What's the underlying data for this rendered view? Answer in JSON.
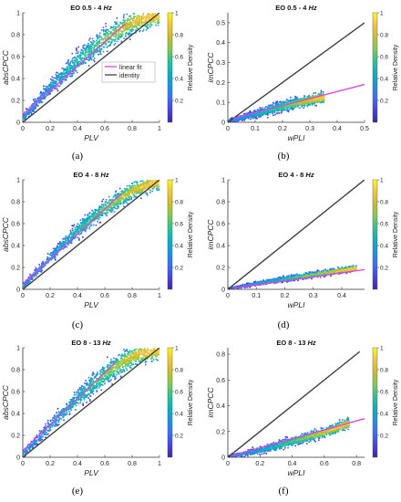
{
  "captions": [
    "(a)",
    "(b)",
    "(c)",
    "(d)",
    "(e)",
    "(f)"
  ],
  "colormap": [
    "#3e26a8",
    "#4743e0",
    "#3c6dfc",
    "#1a94e1",
    "#0cb0c0",
    "#2ac395",
    "#80ca56",
    "#c7bd2e",
    "#f6c43b",
    "#f9fb15"
  ],
  "colors": {
    "identity": "#404040",
    "fit": "#e23fe2",
    "axis": "#333333"
  },
  "chart_data": [
    {
      "type": "scatter",
      "title": "EO 0.5 - 4",
      "title_unit": "Hz",
      "xlabel": "PLV",
      "ylabel": "absCPCC",
      "xlim": [
        0,
        1
      ],
      "ylim": [
        0,
        1
      ],
      "xticks": [
        "0",
        "0.2",
        "0.4",
        "0.6",
        "0.8",
        "1"
      ],
      "yticks": [
        "0",
        "0.2",
        "0.4",
        "0.6",
        "0.8",
        "1"
      ],
      "colorbar": {
        "label": "Relative Density",
        "ticks": [
          "0.2",
          "0.4",
          "0.6",
          "0.8",
          "1"
        ]
      },
      "legend": {
        "position": "right-center",
        "entries": [
          "linear fit",
          "identity"
        ]
      },
      "series": [
        {
          "name": "identity",
          "x": [
            0,
            1
          ],
          "y": [
            0,
            1
          ]
        },
        {
          "name": "linear fit",
          "x": [
            0,
            0.75
          ],
          "y": [
            0.07,
            0.9
          ]
        }
      ],
      "density_band": {
        "center": [
          [
            0,
            0.05
          ],
          [
            0.2,
            0.33
          ],
          [
            0.4,
            0.57
          ],
          [
            0.6,
            0.77
          ],
          [
            0.8,
            0.92
          ],
          [
            1,
            1
          ]
        ],
        "spread": 0.2
      }
    },
    {
      "type": "scatter",
      "title": "EO 0.5 - 4",
      "title_unit": "Hz",
      "xlabel": "wPLI",
      "ylabel": "imCPCC",
      "xlim": [
        0,
        0.5
      ],
      "ylim": [
        0,
        0.55
      ],
      "xticks": [
        "0",
        "0.1",
        "0.2",
        "0.3",
        "0.4",
        "0.5"
      ],
      "yticks": [
        "0",
        "0.1",
        "0.2",
        "0.3",
        "0.4",
        "0.5"
      ],
      "colorbar": {
        "label": "Relative Density",
        "ticks": [
          "0.2",
          "0.4",
          "0.6",
          "0.8",
          "1"
        ]
      },
      "series": [
        {
          "name": "identity",
          "x": [
            0,
            0.5
          ],
          "y": [
            0,
            0.5
          ]
        },
        {
          "name": "linear fit",
          "x": [
            0.02,
            0.5
          ],
          "y": [
            0.02,
            0.19
          ]
        }
      ],
      "density_band": {
        "center": [
          [
            0,
            0.01
          ],
          [
            0.1,
            0.045
          ],
          [
            0.2,
            0.085
          ],
          [
            0.3,
            0.115
          ],
          [
            0.35,
            0.13
          ]
        ],
        "spread": 0.05
      }
    },
    {
      "type": "scatter",
      "title": "EO 4 - 8",
      "title_unit": "Hz",
      "xlabel": "PLV",
      "ylabel": "absCPCC",
      "xlim": [
        0,
        1
      ],
      "ylim": [
        0,
        1
      ],
      "xticks": [
        "0",
        "0.2",
        "0.4",
        "0.6",
        "0.8",
        "1"
      ],
      "yticks": [
        "0",
        "0.2",
        "0.4",
        "0.6",
        "0.8",
        "1"
      ],
      "colorbar": {
        "label": "Relative Density",
        "ticks": [
          "0.2",
          "0.4",
          "0.6",
          "0.8",
          "1"
        ]
      },
      "series": [
        {
          "name": "identity",
          "x": [
            0,
            1
          ],
          "y": [
            0,
            1
          ]
        },
        {
          "name": "linear fit",
          "x": [
            0,
            0.72
          ],
          "y": [
            0.05,
            0.87
          ]
        }
      ],
      "density_band": {
        "center": [
          [
            0,
            0.04
          ],
          [
            0.2,
            0.3
          ],
          [
            0.4,
            0.55
          ],
          [
            0.6,
            0.75
          ],
          [
            0.8,
            0.91
          ],
          [
            1,
            1
          ]
        ],
        "spread": 0.14
      }
    },
    {
      "type": "scatter",
      "title": "EO 4 - 8",
      "title_unit": "Hz",
      "xlabel": "wPLI",
      "ylabel": "imCPCC",
      "xlim": [
        0,
        0.48
      ],
      "ylim": [
        0,
        1
      ],
      "xticks": [
        "0",
        "0.1",
        "0.2",
        "0.3",
        "0.4"
      ],
      "yticks": [
        "0",
        "0.2",
        "0.4",
        "0.6",
        "0.8",
        "1"
      ],
      "colorbar": {
        "label": "Relative Density",
        "ticks": [
          "0.2",
          "0.4",
          "0.6",
          "0.8",
          "1"
        ]
      },
      "series": [
        {
          "name": "identity",
          "x": [
            0,
            0.48
          ],
          "y": [
            0,
            1
          ]
        },
        {
          "name": "linear fit",
          "x": [
            0.02,
            0.48
          ],
          "y": [
            0.01,
            0.18
          ]
        }
      ],
      "density_band": {
        "center": [
          [
            0,
            0.01
          ],
          [
            0.1,
            0.06
          ],
          [
            0.2,
            0.1
          ],
          [
            0.3,
            0.14
          ],
          [
            0.45,
            0.2
          ]
        ],
        "spread": 0.05
      }
    },
    {
      "type": "scatter",
      "title": "EO 8 - 13",
      "title_unit": "Hz",
      "xlabel": "PLV",
      "ylabel": "absCPCC",
      "xlim": [
        0,
        1
      ],
      "ylim": [
        0,
        1
      ],
      "xticks": [
        "0",
        "0.2",
        "0.4",
        "0.6",
        "0.8",
        "1"
      ],
      "yticks": [
        "0",
        "0.2",
        "0.4",
        "0.6",
        "0.8",
        "1"
      ],
      "colorbar": {
        "label": "Relative Density",
        "ticks": [
          "0.2",
          "0.4",
          "0.6",
          "0.8",
          "1"
        ]
      },
      "series": [
        {
          "name": "identity",
          "x": [
            0,
            1
          ],
          "y": [
            0,
            1
          ]
        },
        {
          "name": "linear fit",
          "x": [
            0,
            0.68
          ],
          "y": [
            0.06,
            0.87
          ]
        }
      ],
      "density_band": {
        "center": [
          [
            0,
            0.04
          ],
          [
            0.2,
            0.3
          ],
          [
            0.4,
            0.55
          ],
          [
            0.6,
            0.77
          ],
          [
            0.8,
            0.93
          ],
          [
            1,
            1
          ]
        ],
        "spread": 0.18
      }
    },
    {
      "type": "scatter",
      "title": "EO 8 - 13",
      "title_unit": "Hz",
      "xlabel": "wPLI",
      "ylabel": "imCPCC",
      "xlim": [
        0,
        0.85
      ],
      "ylim": [
        0,
        0.85
      ],
      "xticks": [
        "0",
        "0.2",
        "0.4",
        "0.6",
        "0.8"
      ],
      "yticks": [
        "0",
        "0.2",
        "0.4",
        "0.6",
        "0.8"
      ],
      "colorbar": {
        "label": "Relative Density",
        "ticks": [
          "0.2",
          "0.4",
          "0.6",
          "0.8",
          "1"
        ]
      },
      "series": [
        {
          "name": "identity",
          "x": [
            0,
            0.82
          ],
          "y": [
            0,
            0.82
          ]
        },
        {
          "name": "linear fit",
          "x": [
            0.02,
            0.85
          ],
          "y": [
            0.01,
            0.3
          ]
        }
      ],
      "density_band": {
        "center": [
          [
            0,
            0.01
          ],
          [
            0.2,
            0.06
          ],
          [
            0.4,
            0.13
          ],
          [
            0.6,
            0.2
          ],
          [
            0.75,
            0.27
          ]
        ],
        "spread": 0.07
      }
    }
  ]
}
